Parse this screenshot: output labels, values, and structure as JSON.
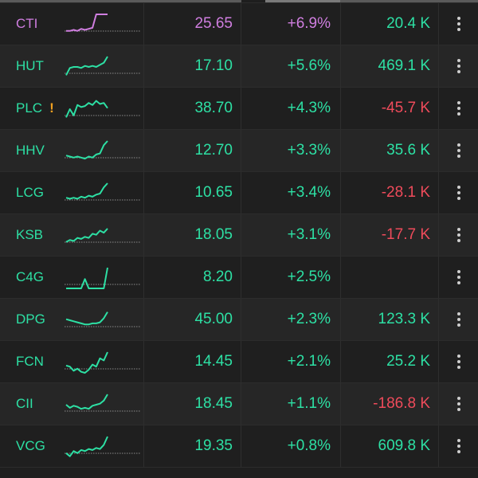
{
  "colors": {
    "up": "#2de0a4",
    "ceiling": "#d07ee0",
    "down": "#ef4b5b",
    "baseline": "#8a8a8a"
  },
  "rows": [
    {
      "symbol": "CTI",
      "warn": "",
      "price": "25.65",
      "change": "+6.9%",
      "flow": "20.4 K",
      "tone": "ceiling",
      "flow_tone": "up",
      "spark": [
        0.2,
        0.2,
        0.25,
        0.2,
        0.3,
        0.25,
        0.3,
        0.35,
        1.0,
        1.0,
        1.0,
        1.0
      ]
    },
    {
      "symbol": "HUT",
      "warn": "",
      "price": "17.10",
      "change": "+5.6%",
      "flow": "469.1 K",
      "tone": "up",
      "flow_tone": "up",
      "spark": [
        0.1,
        0.45,
        0.5,
        0.5,
        0.45,
        0.55,
        0.5,
        0.55,
        0.5,
        0.6,
        0.7,
        1.0
      ]
    },
    {
      "symbol": "PLC",
      "warn": "!",
      "price": "38.70",
      "change": "+4.3%",
      "flow": "-45.7 K",
      "tone": "up",
      "flow_tone": "down",
      "spark": [
        0.1,
        0.5,
        0.2,
        0.7,
        0.6,
        0.65,
        0.8,
        0.7,
        0.9,
        0.75,
        0.8,
        0.55
      ]
    },
    {
      "symbol": "HHV",
      "warn": "",
      "price": "12.70",
      "change": "+3.3%",
      "flow": "35.6 K",
      "tone": "up",
      "flow_tone": "up",
      "spark": [
        0.3,
        0.25,
        0.2,
        0.25,
        0.2,
        0.15,
        0.25,
        0.2,
        0.35,
        0.4,
        0.8,
        1.0
      ]
    },
    {
      "symbol": "LCG",
      "warn": "",
      "price": "10.65",
      "change": "+3.4%",
      "flow": "-28.1 K",
      "tone": "up",
      "flow_tone": "down",
      "spark": [
        0.3,
        0.25,
        0.3,
        0.25,
        0.35,
        0.3,
        0.4,
        0.35,
        0.45,
        0.5,
        0.8,
        1.0
      ]
    },
    {
      "symbol": "KSB",
      "warn": "",
      "price": "18.05",
      "change": "+3.1%",
      "flow": "-17.7 K",
      "tone": "up",
      "flow_tone": "down",
      "spark": [
        0.2,
        0.3,
        0.25,
        0.4,
        0.35,
        0.45,
        0.4,
        0.6,
        0.55,
        0.75,
        0.65,
        0.85
      ]
    },
    {
      "symbol": "C4G",
      "warn": "",
      "price": "8.20",
      "change": "+2.5%",
      "flow": "",
      "tone": "up",
      "flow_tone": "up",
      "spark": [
        0.0,
        0.0,
        0.0,
        0.0,
        0.0,
        0.45,
        0.0,
        0.0,
        0.0,
        0.0,
        0.0,
        1.0
      ]
    },
    {
      "symbol": "DPG",
      "warn": "",
      "price": "45.00",
      "change": "+2.3%",
      "flow": "123.3 K",
      "tone": "up",
      "flow_tone": "up",
      "spark": [
        0.55,
        0.5,
        0.45,
        0.4,
        0.35,
        0.3,
        0.3,
        0.35,
        0.35,
        0.4,
        0.6,
        0.9
      ]
    },
    {
      "symbol": "FCN",
      "warn": "",
      "price": "14.45",
      "change": "+2.1%",
      "flow": "25.2 K",
      "tone": "up",
      "flow_tone": "up",
      "spark": [
        0.35,
        0.3,
        0.1,
        0.2,
        0.05,
        0.0,
        0.15,
        0.4,
        0.3,
        0.7,
        0.6,
        1.0
      ]
    },
    {
      "symbol": "CII",
      "warn": "",
      "price": "18.45",
      "change": "+1.1%",
      "flow": "-186.8 K",
      "tone": "up",
      "flow_tone": "down",
      "spark": [
        0.5,
        0.35,
        0.45,
        0.4,
        0.3,
        0.35,
        0.3,
        0.45,
        0.5,
        0.55,
        0.7,
        1.0
      ]
    },
    {
      "symbol": "VCG",
      "warn": "",
      "price": "19.35",
      "change": "+0.8%",
      "flow": "609.8 K",
      "tone": "up",
      "flow_tone": "up",
      "spark": [
        0.2,
        0.05,
        0.3,
        0.2,
        0.35,
        0.3,
        0.4,
        0.35,
        0.45,
        0.4,
        0.6,
        1.0
      ]
    }
  ]
}
